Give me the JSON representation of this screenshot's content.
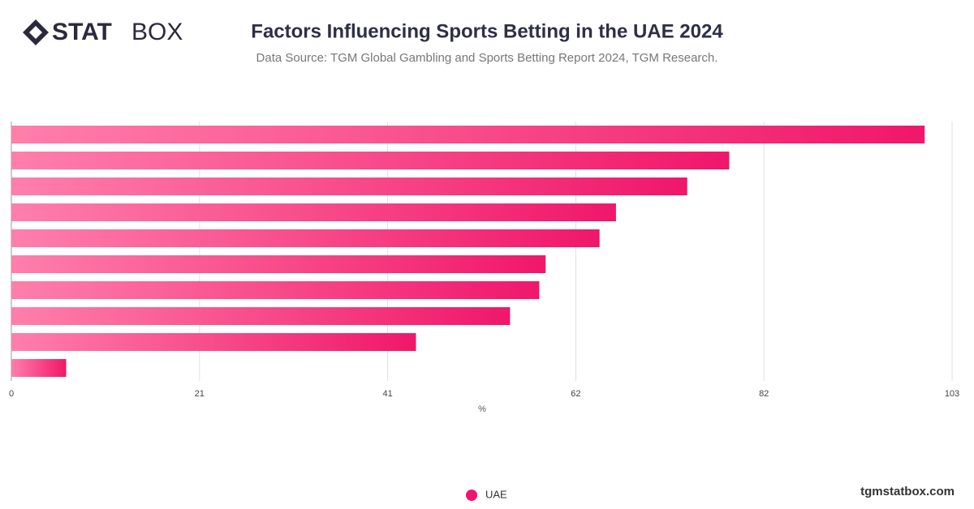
{
  "logo": {
    "bold": "STAT",
    "light": "BOX"
  },
  "footer": "tgmstatbox.com",
  "chart_data": {
    "type": "bar",
    "orientation": "horizontal",
    "title": "Factors Influencing Sports Betting in the UAE 2024",
    "subtitle": "Data Source: TGM Global Gambling and Sports Betting Report 2024, TGM Research.",
    "x_label": "%",
    "categories": [
      null,
      null,
      null,
      null,
      null,
      null,
      null,
      null,
      null,
      null
    ],
    "series": [
      {
        "name": "UAE",
        "color": "#f0176a",
        "values": [
          100.0,
          78.6,
          74.0,
          66.2,
          64.4,
          58.5,
          57.8,
          54.6,
          44.3,
          6.0
        ]
      }
    ],
    "xlim": [
      0,
      103
    ],
    "xticks": [
      0,
      {
        "value": 20.6,
        "label": "21"
      },
      {
        "value": 41.2,
        "label": "41"
      },
      {
        "value": 61.8,
        "label": "62"
      },
      {
        "value": 82.4,
        "label": "82"
      },
      103
    ],
    "grid": true,
    "legend": "bottom"
  }
}
